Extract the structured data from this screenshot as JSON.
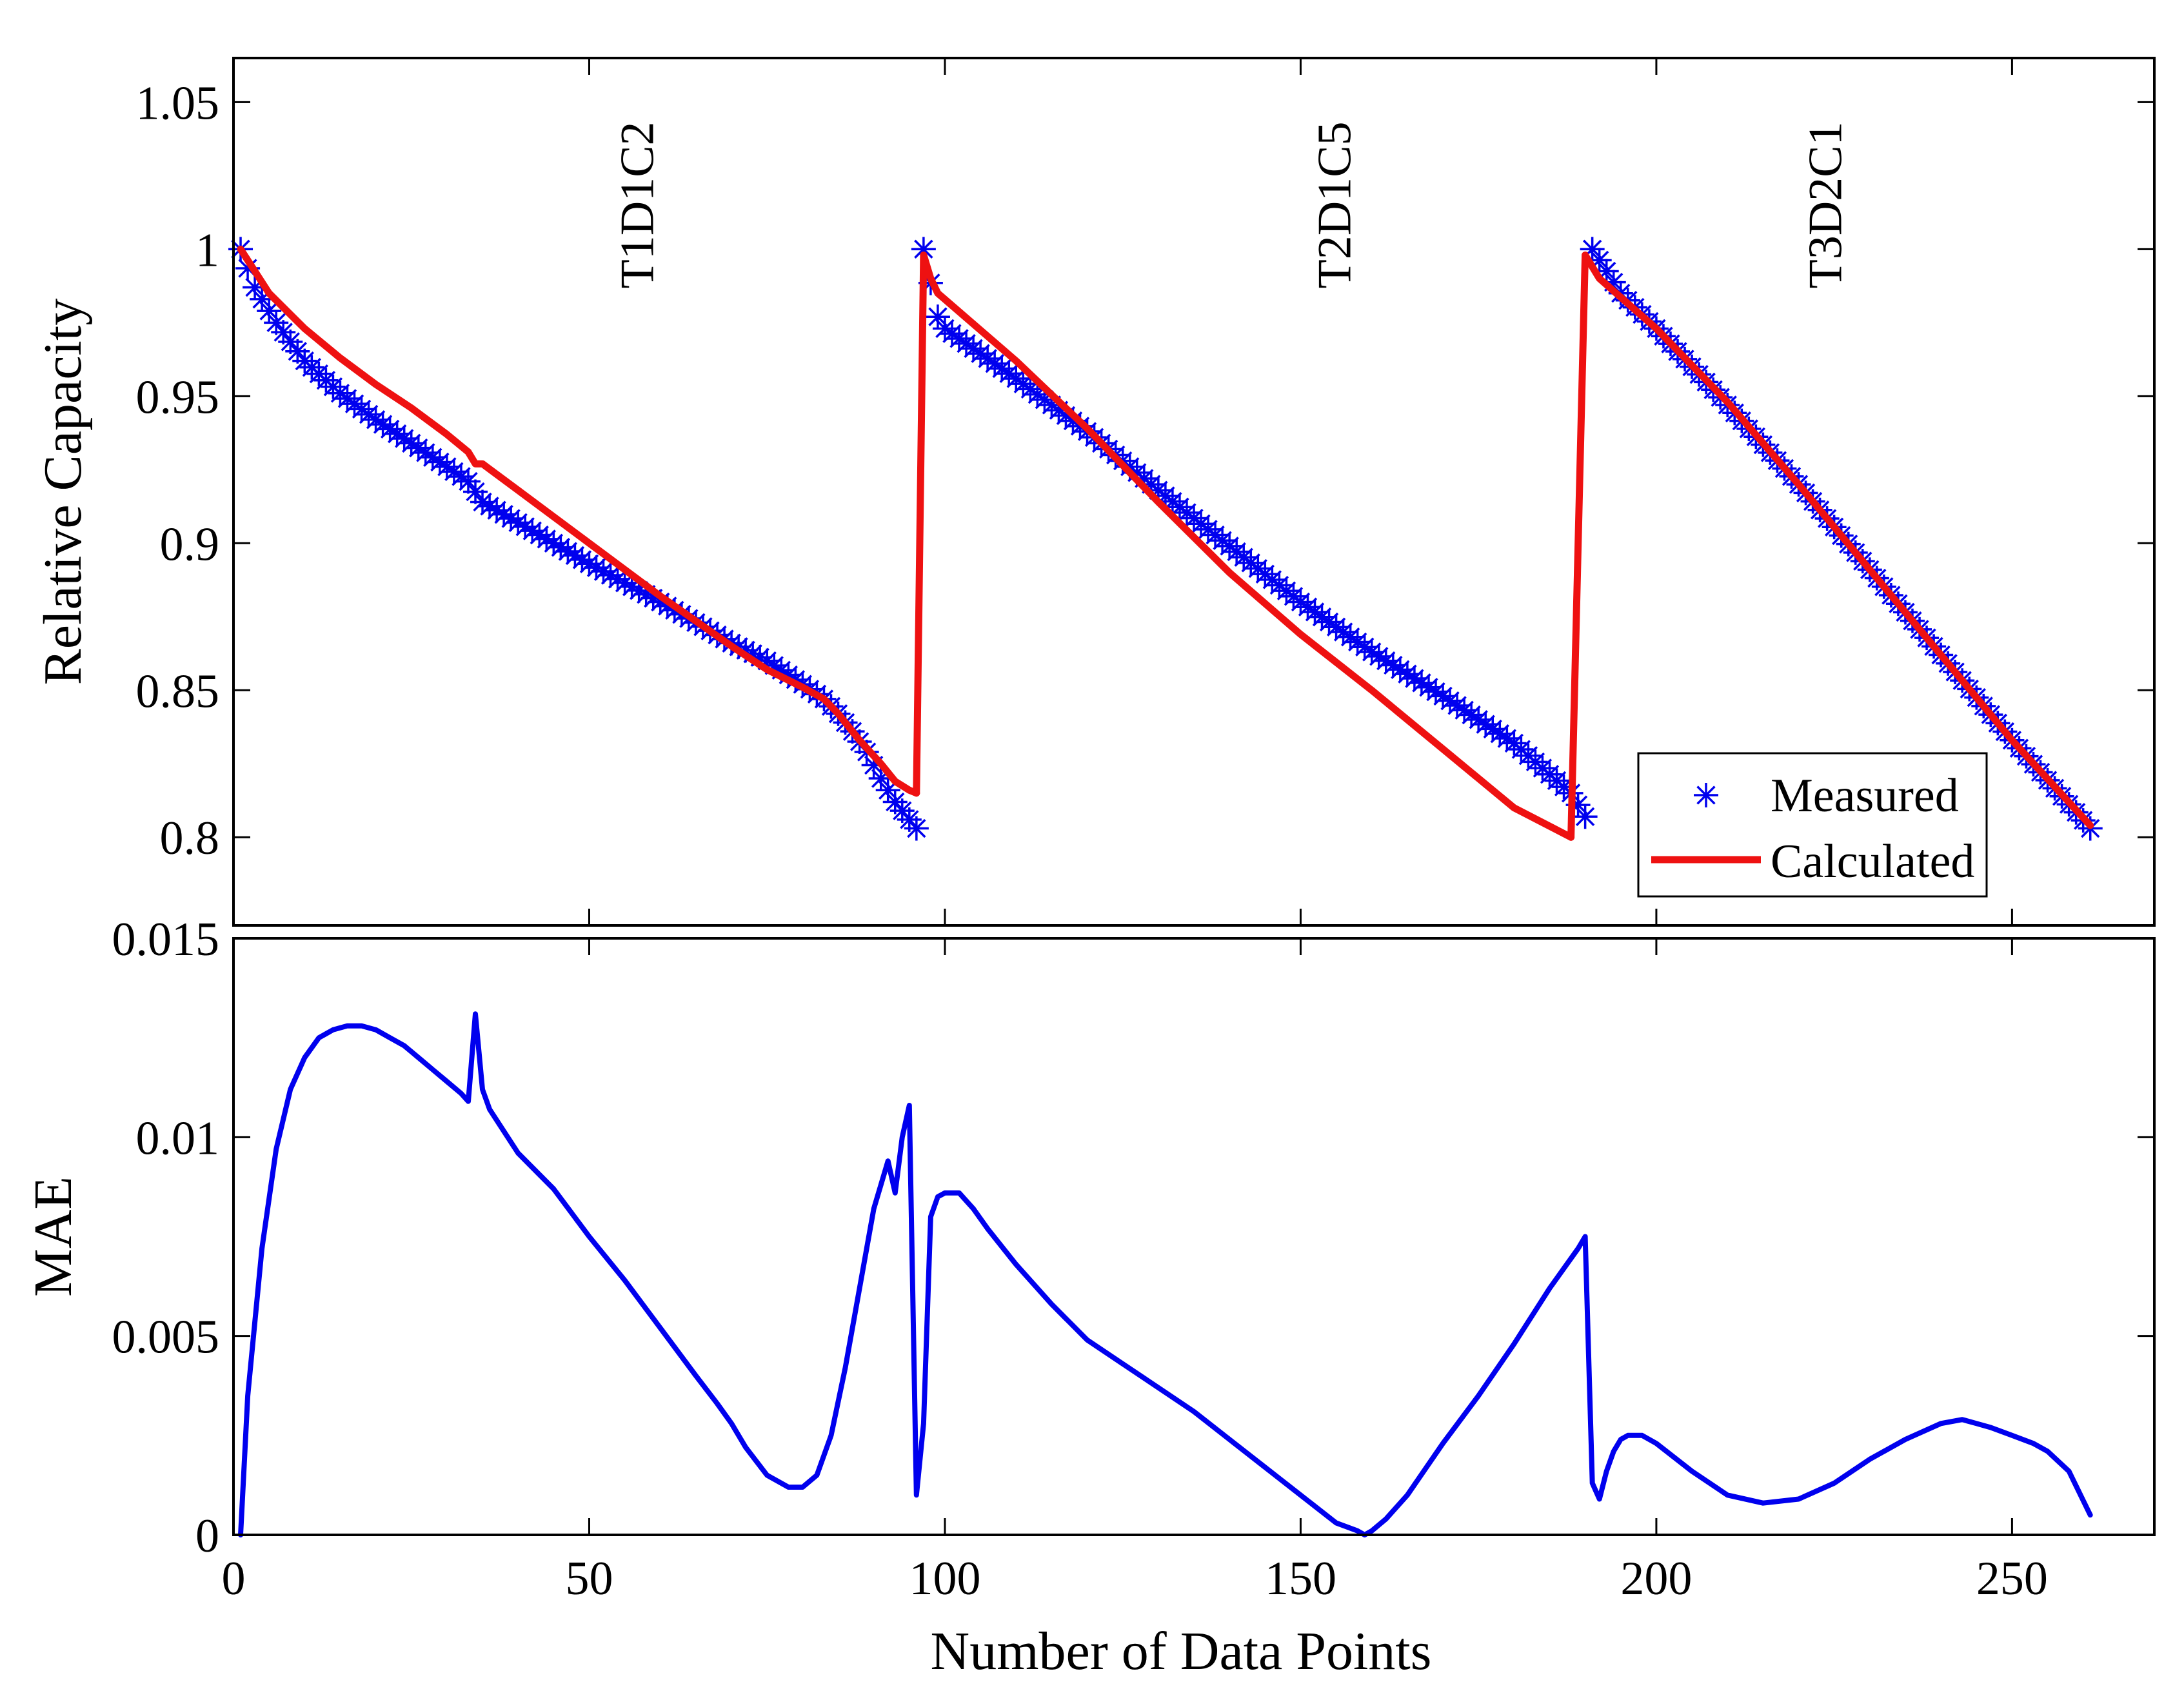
{
  "chart_data": [
    {
      "type": "line",
      "panel": "top",
      "title": "",
      "xlabel": "",
      "ylabel": "Relative Capacity",
      "xlim": [
        0,
        270
      ],
      "ylim": [
        0.77,
        1.065
      ],
      "xticks": [
        0,
        50,
        100,
        150,
        200,
        250
      ],
      "yticks": [
        0.8,
        0.85,
        0.9,
        0.95,
        1,
        1.05
      ],
      "ytick_labels": [
        "0.8",
        "0.85",
        "0.9",
        "0.95",
        "1",
        "1.05"
      ],
      "annotations": [
        {
          "text": "T1D1C2",
          "x": 59,
          "y": 1.015
        },
        {
          "text": "T2D1C5",
          "x": 157,
          "y": 1.015
        },
        {
          "text": "T3D2C1",
          "x": 226,
          "y": 1.015
        }
      ],
      "legend": {
        "position": "bottom-right",
        "entries": [
          "Measured",
          "Calculated"
        ]
      },
      "series": [
        {
          "name": "Measured",
          "style": "markers",
          "marker": "asterisk",
          "color": "#0000ee",
          "segments": [
            {
              "x": [
                1,
                3,
                6,
                10,
                15,
                20,
                25,
                30,
                33,
                35,
                40,
                50,
                60,
                70,
                75,
                80,
                83,
                85,
                87,
                89,
                91,
                93,
                95,
                96
              ],
              "y": [
                1.0,
                0.987,
                0.975,
                0.962,
                0.951,
                0.942,
                0.934,
                0.926,
                0.921,
                0.914,
                0.907,
                0.893,
                0.88,
                0.866,
                0.86,
                0.852,
                0.847,
                0.842,
                0.836,
                0.829,
                0.82,
                0.812,
                0.806,
                0.803
              ]
            },
            {
              "x": [
                97,
                99,
                100,
                110,
                120,
                130,
                140,
                150,
                160,
                170,
                180,
                188,
                190
              ],
              "y": [
                1.0,
                0.977,
                0.973,
                0.956,
                0.938,
                0.918,
                0.899,
                0.88,
                0.863,
                0.848,
                0.832,
                0.815,
                0.807
              ]
            },
            {
              "x": [
                191,
                195,
                200,
                210,
                220,
                230,
                240,
                250,
                261
              ],
              "y": [
                1.0,
                0.985,
                0.973,
                0.947,
                0.92,
                0.891,
                0.862,
                0.833,
                0.803
              ]
            }
          ]
        },
        {
          "name": "Calculated",
          "style": "line",
          "color": "#ee1111",
          "segments": [
            {
              "x": [
                1,
                5,
                10,
                15,
                20,
                25,
                30,
                33,
                34,
                35,
                40,
                50,
                60,
                70,
                75,
                80,
                83,
                85,
                88,
                91,
                93,
                95,
                96
              ],
              "y": [
                1.0,
                0.985,
                0.973,
                0.963,
                0.954,
                0.946,
                0.937,
                0.931,
                0.927,
                0.927,
                0.918,
                0.9,
                0.882,
                0.865,
                0.857,
                0.851,
                0.847,
                0.842,
                0.833,
                0.825,
                0.819,
                0.816,
                0.815
              ]
            },
            {
              "x": [
                96,
                97,
                98,
                99,
                110,
                120,
                130,
                140,
                150,
                160,
                170,
                180,
                188
              ],
              "y": [
                0.815,
                0.998,
                0.99,
                0.985,
                0.962,
                0.939,
                0.914,
                0.89,
                0.869,
                0.85,
                0.83,
                0.81,
                0.8
              ]
            },
            {
              "x": [
                188,
                190,
                192,
                200,
                210,
                220,
                230,
                240,
                250,
                261
              ],
              "y": [
                0.8,
                0.998,
                0.99,
                0.973,
                0.948,
                0.92,
                0.891,
                0.862,
                0.833,
                0.804
              ]
            }
          ]
        }
      ]
    },
    {
      "type": "line",
      "panel": "bottom",
      "title": "",
      "xlabel": "Number of Data Points",
      "ylabel": "MAE",
      "xlim": [
        0,
        270
      ],
      "ylim": [
        0,
        0.015
      ],
      "xticks": [
        0,
        50,
        100,
        150,
        200,
        250
      ],
      "xtick_labels": [
        "0",
        "50",
        "100",
        "150",
        "200",
        "250"
      ],
      "yticks": [
        0,
        0.005,
        0.01,
        0.015
      ],
      "ytick_labels": [
        "0",
        "0.005",
        "0.01",
        "0.015"
      ],
      "series": [
        {
          "name": "MAE",
          "color": "#0000ee",
          "x": [
            1,
            2,
            4,
            6,
            8,
            10,
            12,
            14,
            16,
            18,
            20,
            22,
            24,
            26,
            28,
            30,
            32,
            33,
            34,
            35,
            36,
            40,
            45,
            50,
            55,
            60,
            65,
            68,
            70,
            72,
            75,
            78,
            80,
            82,
            84,
            86,
            88,
            90,
            92,
            93,
            94,
            95,
            96,
            97,
            98,
            99,
            100,
            102,
            104,
            106,
            110,
            115,
            120,
            125,
            130,
            135,
            140,
            145,
            150,
            155,
            158,
            159,
            160,
            162,
            165,
            170,
            175,
            180,
            185,
            189,
            190,
            191,
            192,
            193,
            194,
            195,
            196,
            198,
            200,
            205,
            210,
            215,
            220,
            225,
            230,
            235,
            240,
            243,
            245,
            247,
            250,
            253,
            255,
            258,
            261
          ],
          "y": [
            0,
            0.0035,
            0.0072,
            0.0097,
            0.0112,
            0.012,
            0.0125,
            0.0127,
            0.0128,
            0.0128,
            0.0127,
            0.0125,
            0.0123,
            0.012,
            0.0117,
            0.0114,
            0.0111,
            0.0109,
            0.0131,
            0.0112,
            0.0107,
            0.0096,
            0.0087,
            0.0075,
            0.0064,
            0.0052,
            0.004,
            0.0033,
            0.0028,
            0.0022,
            0.0015,
            0.0012,
            0.0012,
            0.0015,
            0.0025,
            0.0042,
            0.0062,
            0.0082,
            0.0094,
            0.0086,
            0.01,
            0.0108,
            0.001,
            0.0028,
            0.008,
            0.0085,
            0.0086,
            0.0086,
            0.0082,
            0.0077,
            0.0068,
            0.0058,
            0.0049,
            0.0043,
            0.0037,
            0.0031,
            0.0024,
            0.0017,
            0.001,
            0.0003,
            0.0001,
            0,
            0.0001,
            0.0004,
            0.001,
            0.0023,
            0.0035,
            0.0048,
            0.0062,
            0.0072,
            0.0075,
            0.0013,
            0.0009,
            0.0016,
            0.0021,
            0.0024,
            0.0025,
            0.0025,
            0.0023,
            0.0016,
            0.001,
            0.0008,
            0.0009,
            0.0013,
            0.0019,
            0.0024,
            0.0028,
            0.0029,
            0.0028,
            0.0027,
            0.0025,
            0.0023,
            0.0021,
            0.0016,
            0.0005
          ]
        }
      ]
    }
  ]
}
